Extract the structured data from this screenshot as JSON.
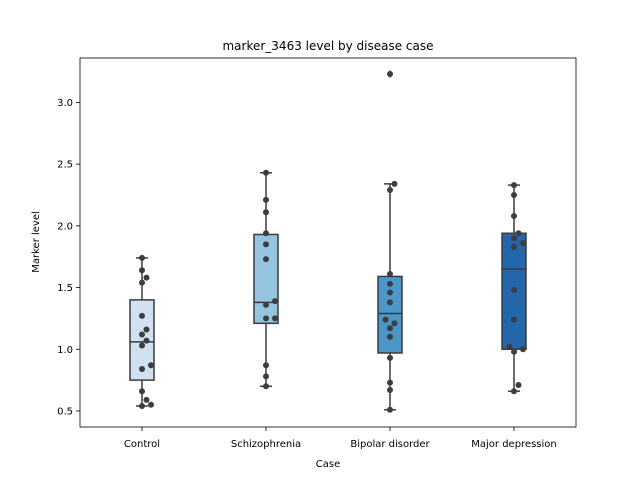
{
  "chart_data": {
    "type": "box",
    "title": "marker_3463 level by disease case",
    "xlabel": "Case",
    "ylabel": "Marker level",
    "ylim": [
      0.37,
      3.36
    ],
    "yticks": [
      0.5,
      1.0,
      1.5,
      2.0,
      2.5,
      3.0
    ],
    "ytick_labels": [
      "0.5",
      "1.0",
      "1.5",
      "2.0",
      "2.5",
      "3.0"
    ],
    "grid": false,
    "categories": [
      "Control",
      "Schizophrenia",
      "Bipolar disorder",
      "Major depression"
    ],
    "colors": [
      "#d0e1f2",
      "#94c4df",
      "#4a98c9",
      "#2266ac"
    ],
    "box_stats": [
      {
        "whislo": 0.54,
        "q1": 0.75,
        "med": 1.06,
        "q3": 1.4,
        "whishi": 1.74,
        "fliers": []
      },
      {
        "whislo": 0.7,
        "q1": 1.21,
        "med": 1.38,
        "q3": 1.93,
        "whishi": 2.43,
        "fliers": []
      },
      {
        "whislo": 0.51,
        "q1": 0.97,
        "med": 1.29,
        "q3": 1.59,
        "whishi": 2.34,
        "fliers": [
          3.23
        ]
      },
      {
        "whislo": 0.66,
        "q1": 1.0,
        "med": 1.65,
        "q3": 1.94,
        "whishi": 2.33,
        "fliers": []
      }
    ],
    "points": [
      [
        1.74,
        1.64,
        1.58,
        1.54,
        1.27,
        1.16,
        1.12,
        1.07,
        1.03,
        0.87,
        0.84,
        0.66,
        0.59,
        0.55,
        0.54
      ],
      [
        2.43,
        2.21,
        2.11,
        1.94,
        1.85,
        1.73,
        1.39,
        1.36,
        1.25,
        1.25,
        0.87,
        0.78,
        0.7
      ],
      [
        3.23,
        2.34,
        2.29,
        1.61,
        1.53,
        1.46,
        1.38,
        1.24,
        1.21,
        1.17,
        1.1,
        0.93,
        0.73,
        0.67,
        0.51
      ],
      [
        2.33,
        2.25,
        2.08,
        1.94,
        1.9,
        1.86,
        1.83,
        1.48,
        1.24,
        1.02,
        1.0,
        0.98,
        0.71,
        0.66
      ]
    ]
  }
}
